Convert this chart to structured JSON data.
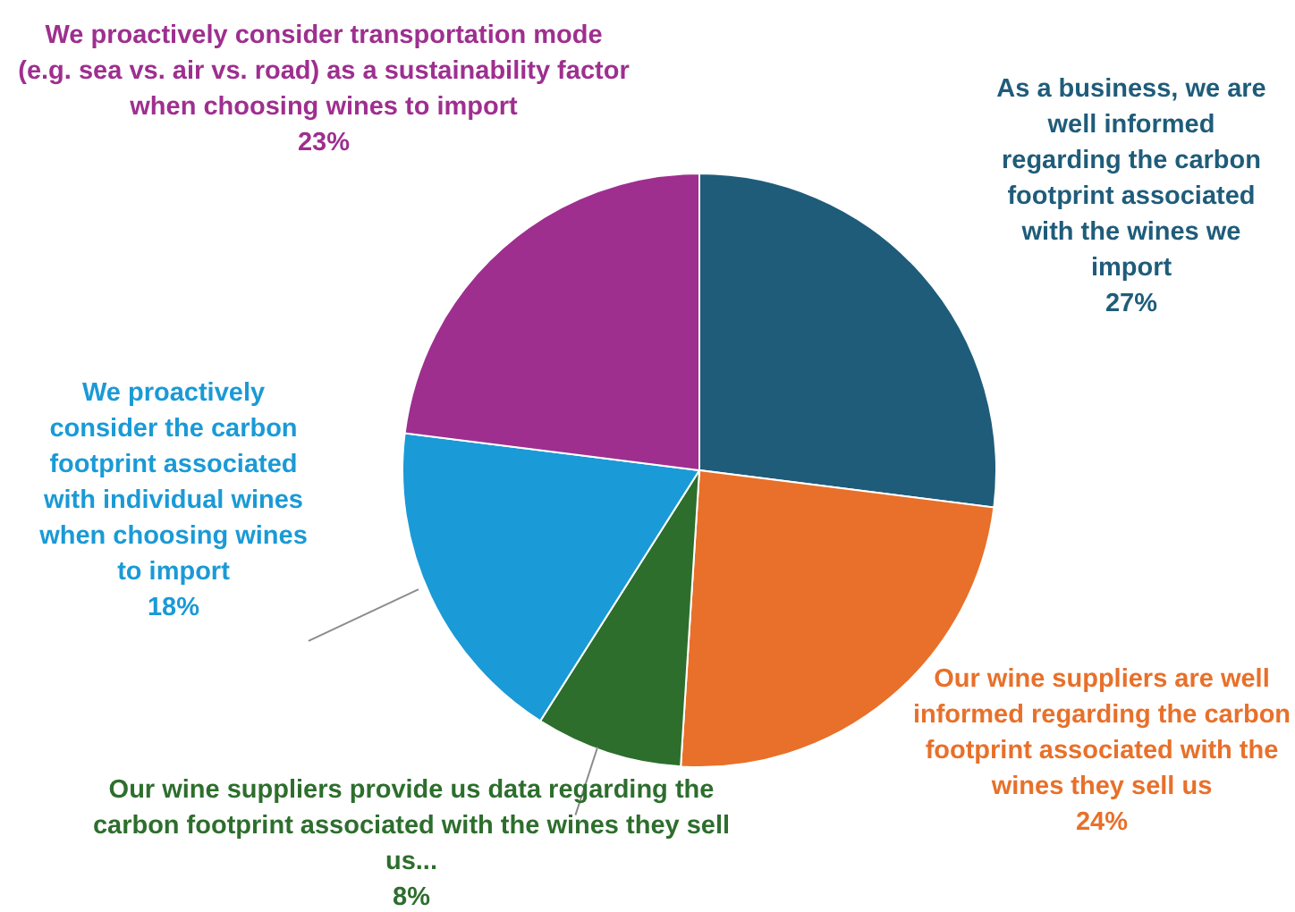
{
  "chart_data": {
    "type": "pie",
    "categories": [
      "As a business, we are well informed regarding the carbon footprint associated with the wines we import",
      "Our wine suppliers are well informed regarding the carbon footprint associated with the wines they sell us",
      "Our wine suppliers provide us data regarding the carbon footprint associated with the wines they sell us...",
      "We proactively consider the carbon footprint associated with individual wines when choosing wines to import",
      "We proactively consider transportation mode (e.g. sea vs. air vs. road) as a sustainability factor when choosing wines to import"
    ],
    "values": [
      27,
      24,
      8,
      18,
      23
    ],
    "value_labels": [
      "27%",
      "24%",
      "8%",
      "18%",
      "23%"
    ],
    "colors": [
      "#1f5c7a",
      "#e8702a",
      "#2d6e2d",
      "#1a9ad6",
      "#9e2f8f"
    ],
    "legend": false
  }
}
